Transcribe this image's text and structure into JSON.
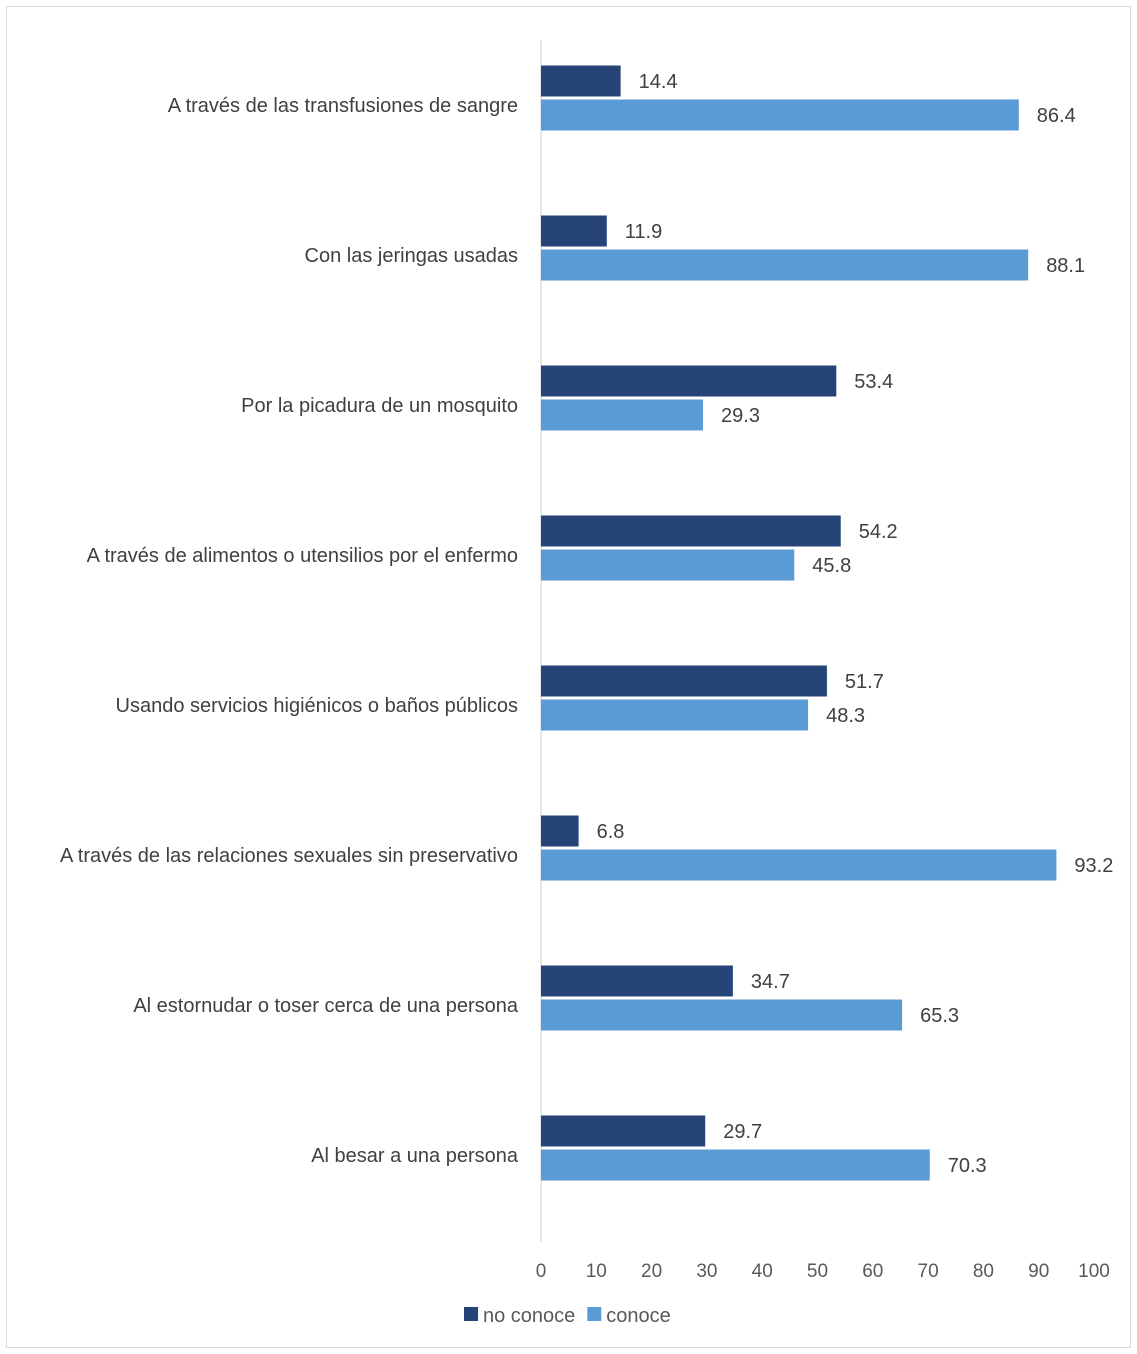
{
  "chart_data": {
    "type": "bar",
    "orientation": "horizontal",
    "categories": [
      "A través de las transfusiones de sangre",
      "Con las jeringas usadas",
      "Por la picadura de un mosquito",
      "A través de alimentos o utensilios por el enfermo",
      "Usando servicios higiénicos o baños públicos",
      "A través de las relaciones sexuales sin preservativo",
      "Al estornudar o toser cerca de una persona",
      "Al besar a una persona"
    ],
    "series": [
      {
        "name": "no conoce",
        "color": "#264478",
        "values": [
          14.4,
          11.9,
          53.4,
          54.2,
          51.7,
          6.8,
          34.7,
          29.7
        ]
      },
      {
        "name": "conoce",
        "color": "#5b9bd5",
        "values": [
          86.4,
          88.1,
          29.3,
          45.8,
          48.3,
          93.2,
          65.3,
          70.3
        ]
      }
    ],
    "xlim": [
      0,
      100
    ],
    "xticks": [
      "0",
      "10",
      "20",
      "30",
      "40",
      "50",
      "60",
      "70",
      "80",
      "90",
      "100"
    ],
    "grid": false,
    "legend_position": "bottom",
    "title": "",
    "xlabel": "",
    "ylabel": ""
  }
}
